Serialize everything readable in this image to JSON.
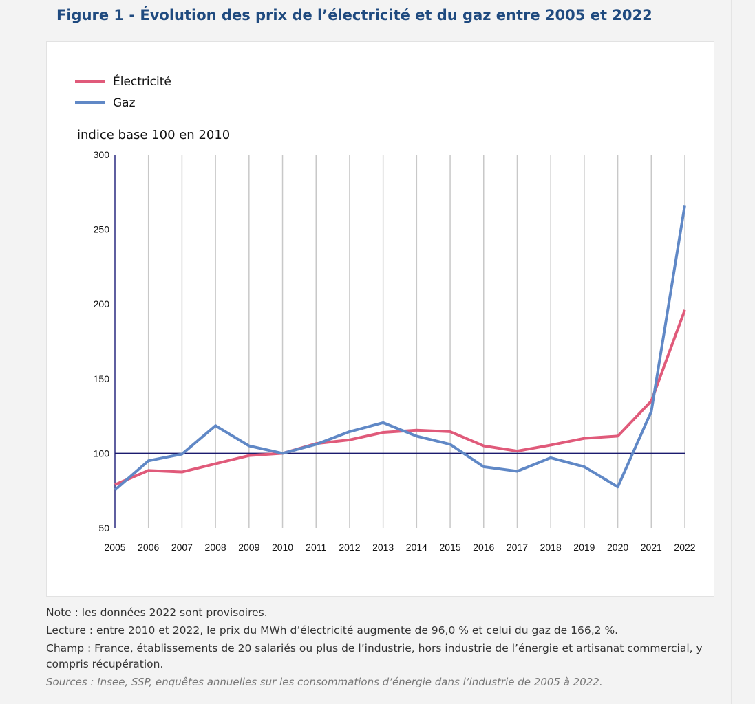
{
  "title": "Figure 1 - Évolution des prix de l’électricité et du gaz entre 2005 et 2022",
  "notes": {
    "note": "Note : les données 2022 sont provisoires.",
    "lecture": "Lecture : entre 2010 et 2022, le prix du MWh d’électricité augmente de 96,0 % et celui du gaz de 166,2 %.",
    "champ": "Champ : France, établissements de 20 salariés ou plus de l’industrie, hors industrie de l’énergie et artisanat commercial, y compris récupération.",
    "sources": "Sources : Insee, SSP, enquêtes annuelles sur les consommations d’énergie dans l’industrie de 2005 à 2022."
  },
  "chart_data": {
    "type": "line",
    "ylabel": "indice base 100 en 2010",
    "ylim": [
      50,
      300
    ],
    "yticks": [
      50,
      100,
      150,
      200,
      250,
      300
    ],
    "grid": "vertical",
    "reference_line": 100,
    "legend_position": "top-left",
    "x": [
      2005,
      2006,
      2007,
      2008,
      2009,
      2010,
      2011,
      2012,
      2013,
      2014,
      2015,
      2016,
      2017,
      2018,
      2019,
      2020,
      2021,
      2022
    ],
    "series": [
      {
        "name": "Électricité",
        "color": "#e05a7a",
        "values": [
          79,
          88.5,
          87.5,
          93,
          98.5,
          100,
          106.5,
          109,
          114,
          115.5,
          114.5,
          105,
          101.5,
          105.5,
          110,
          111.5,
          135,
          196
        ]
      },
      {
        "name": "Gaz",
        "color": "#6088c6",
        "values": [
          75.5,
          95,
          99.5,
          118.5,
          105,
          100,
          106,
          114.5,
          120.5,
          111.5,
          106,
          91,
          88,
          97,
          91,
          77.5,
          128,
          266.2
        ]
      }
    ],
    "reference_color": "#1a1a6e"
  }
}
